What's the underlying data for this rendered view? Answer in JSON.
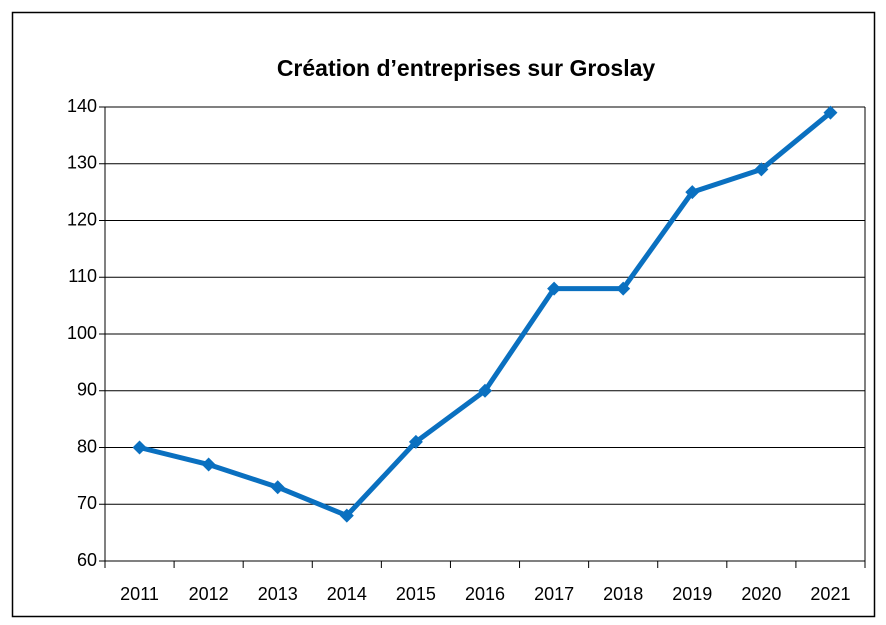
{
  "chart_data": {
    "type": "line",
    "title": "Création d’entreprises sur Groslay",
    "categories": [
      "2011",
      "2012",
      "2013",
      "2014",
      "2015",
      "2016",
      "2017",
      "2018",
      "2019",
      "2020",
      "2021"
    ],
    "values": [
      80,
      77,
      73,
      68,
      81,
      90,
      108,
      108,
      125,
      129,
      139
    ],
    "color": "#0a70c0",
    "ylim": [
      60,
      140
    ],
    "yticks": [
      60,
      70,
      80,
      90,
      100,
      110,
      120,
      130,
      140
    ],
    "grid": true
  }
}
